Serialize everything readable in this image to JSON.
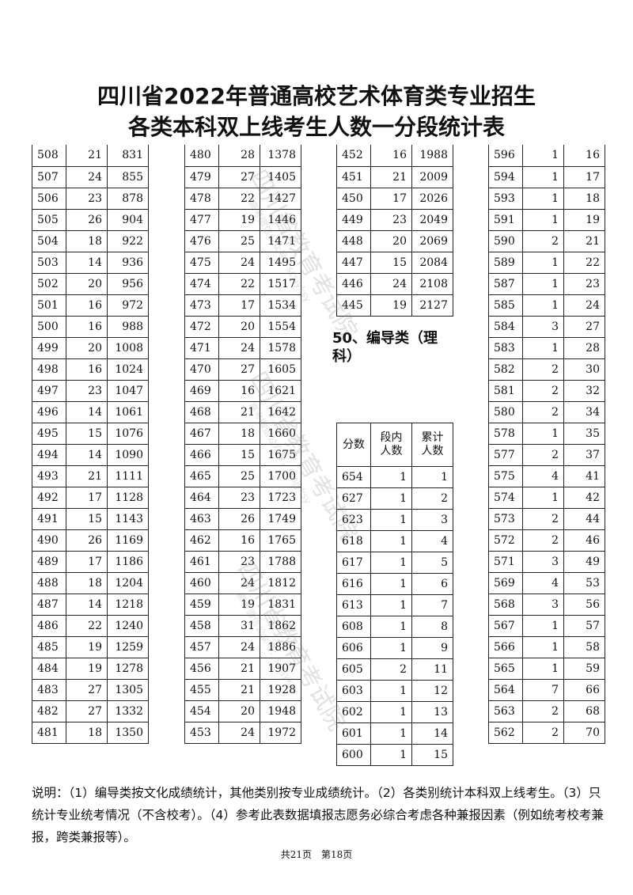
{
  "title": {
    "line1": "四川省2022年普通高校艺术体育类专业招生",
    "line2": "各类本科双上线考生人数一分段统计表"
  },
  "tables": {
    "col1": [
      [
        "508",
        "21",
        "831"
      ],
      [
        "507",
        "24",
        "855"
      ],
      [
        "506",
        "23",
        "878"
      ],
      [
        "505",
        "26",
        "904"
      ],
      [
        "504",
        "18",
        "922"
      ],
      [
        "503",
        "14",
        "936"
      ],
      [
        "502",
        "20",
        "956"
      ],
      [
        "501",
        "16",
        "972"
      ],
      [
        "500",
        "16",
        "988"
      ],
      [
        "499",
        "20",
        "1008"
      ],
      [
        "498",
        "16",
        "1024"
      ],
      [
        "497",
        "23",
        "1047"
      ],
      [
        "496",
        "14",
        "1061"
      ],
      [
        "495",
        "15",
        "1076"
      ],
      [
        "494",
        "14",
        "1090"
      ],
      [
        "493",
        "21",
        "1111"
      ],
      [
        "492",
        "17",
        "1128"
      ],
      [
        "491",
        "15",
        "1143"
      ],
      [
        "490",
        "26",
        "1169"
      ],
      [
        "489",
        "17",
        "1186"
      ],
      [
        "488",
        "18",
        "1204"
      ],
      [
        "487",
        "14",
        "1218"
      ],
      [
        "486",
        "22",
        "1240"
      ],
      [
        "485",
        "19",
        "1259"
      ],
      [
        "484",
        "19",
        "1278"
      ],
      [
        "483",
        "27",
        "1305"
      ],
      [
        "482",
        "27",
        "1332"
      ],
      [
        "481",
        "18",
        "1350"
      ]
    ],
    "col2": [
      [
        "480",
        "28",
        "1378"
      ],
      [
        "479",
        "27",
        "1405"
      ],
      [
        "478",
        "22",
        "1427"
      ],
      [
        "477",
        "19",
        "1446"
      ],
      [
        "476",
        "25",
        "1471"
      ],
      [
        "475",
        "24",
        "1495"
      ],
      [
        "474",
        "22",
        "1517"
      ],
      [
        "473",
        "17",
        "1534"
      ],
      [
        "472",
        "20",
        "1554"
      ],
      [
        "471",
        "24",
        "1578"
      ],
      [
        "470",
        "27",
        "1605"
      ],
      [
        "469",
        "16",
        "1621"
      ],
      [
        "468",
        "21",
        "1642"
      ],
      [
        "467",
        "18",
        "1660"
      ],
      [
        "466",
        "15",
        "1675"
      ],
      [
        "465",
        "25",
        "1700"
      ],
      [
        "464",
        "23",
        "1723"
      ],
      [
        "463",
        "26",
        "1749"
      ],
      [
        "462",
        "16",
        "1765"
      ],
      [
        "461",
        "23",
        "1788"
      ],
      [
        "460",
        "24",
        "1812"
      ],
      [
        "459",
        "19",
        "1831"
      ],
      [
        "458",
        "31",
        "1862"
      ],
      [
        "457",
        "24",
        "1886"
      ],
      [
        "456",
        "21",
        "1907"
      ],
      [
        "455",
        "21",
        "1928"
      ],
      [
        "454",
        "20",
        "1948"
      ],
      [
        "453",
        "24",
        "1972"
      ]
    ],
    "col3": [
      [
        "452",
        "16",
        "1988"
      ],
      [
        "451",
        "21",
        "2009"
      ],
      [
        "450",
        "17",
        "2026"
      ],
      [
        "449",
        "23",
        "2049"
      ],
      [
        "448",
        "20",
        "2069"
      ],
      [
        "447",
        "15",
        "2084"
      ],
      [
        "446",
        "24",
        "2108"
      ],
      [
        "445",
        "19",
        "2127"
      ]
    ],
    "section_heading": "50、编导类（理科）",
    "section_header": {
      "score": "分数",
      "count_l1": "段内",
      "count_l2": "人数",
      "cum_l1": "累计",
      "cum_l2": "人数"
    },
    "section": [
      [
        "654",
        "1",
        "1"
      ],
      [
        "627",
        "1",
        "2"
      ],
      [
        "623",
        "1",
        "3"
      ],
      [
        "618",
        "1",
        "4"
      ],
      [
        "617",
        "1",
        "5"
      ],
      [
        "616",
        "1",
        "6"
      ],
      [
        "613",
        "1",
        "7"
      ],
      [
        "608",
        "1",
        "8"
      ],
      [
        "606",
        "1",
        "9"
      ],
      [
        "605",
        "2",
        "11"
      ],
      [
        "603",
        "1",
        "12"
      ],
      [
        "602",
        "1",
        "13"
      ],
      [
        "601",
        "1",
        "14"
      ],
      [
        "600",
        "1",
        "15"
      ]
    ],
    "col5": [
      [
        "596",
        "1",
        "16"
      ],
      [
        "594",
        "1",
        "17"
      ],
      [
        "593",
        "1",
        "18"
      ],
      [
        "591",
        "1",
        "19"
      ],
      [
        "590",
        "2",
        "21"
      ],
      [
        "589",
        "1",
        "22"
      ],
      [
        "587",
        "1",
        "23"
      ],
      [
        "585",
        "1",
        "24"
      ],
      [
        "584",
        "3",
        "27"
      ],
      [
        "583",
        "1",
        "28"
      ],
      [
        "582",
        "2",
        "30"
      ],
      [
        "581",
        "2",
        "32"
      ],
      [
        "580",
        "2",
        "34"
      ],
      [
        "578",
        "1",
        "35"
      ],
      [
        "577",
        "2",
        "37"
      ],
      [
        "575",
        "4",
        "41"
      ],
      [
        "574",
        "1",
        "42"
      ],
      [
        "573",
        "2",
        "44"
      ],
      [
        "572",
        "2",
        "46"
      ],
      [
        "571",
        "3",
        "49"
      ],
      [
        "569",
        "4",
        "53"
      ],
      [
        "568",
        "3",
        "56"
      ],
      [
        "567",
        "1",
        "57"
      ],
      [
        "566",
        "1",
        "58"
      ],
      [
        "565",
        "1",
        "59"
      ],
      [
        "564",
        "7",
        "66"
      ],
      [
        "563",
        "2",
        "68"
      ],
      [
        "562",
        "2",
        "70"
      ]
    ]
  },
  "notes": "说明：（1）编导类按文化成绩统计，其他类别按专业成绩统计。（2）各类别统计本科双上线考生。（3）只统计专业统考情况（不含校考）。（4）参考此表数据填报志愿务必综合考虑各种兼报因素（例如统考校考兼报，跨类兼报等）。",
  "footer": "共21页　第18页",
  "watermark": {
    "main": "四川省教育考试院",
    "sub": "高考微信公众号：scsjyksy"
  }
}
